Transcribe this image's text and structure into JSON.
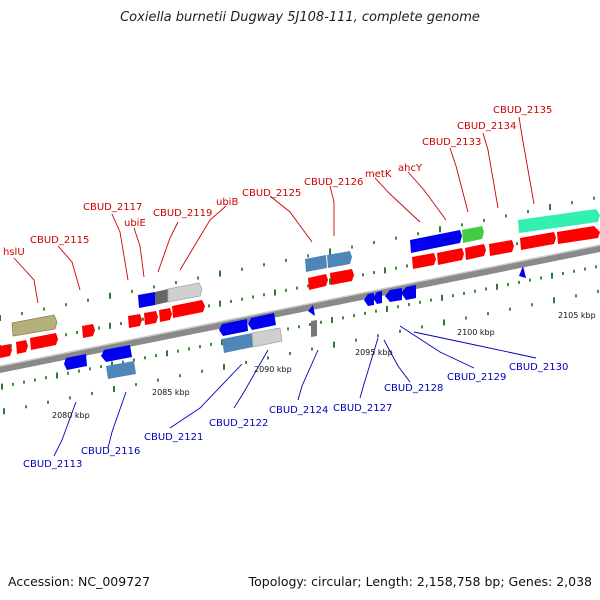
{
  "title": "Coxiella burnetii Dugway 5J108-111, complete genome",
  "accession": "Accession: NC_009727",
  "summary": "Topology: circular; Length: 2,158,758 bp; Genes: 2,038",
  "colors": {
    "forward_label": "#cc0000",
    "reverse_label": "#0000bb",
    "backbone": "#888888",
    "red": "#ff0000",
    "blue": "#0000ee",
    "steel": "#4f86b8",
    "gray": "#cfcfcf",
    "olive": "#b5b07a",
    "green": "#44cc44",
    "teal": "#33f0b0"
  },
  "scale_labels": [
    "2080 kbp",
    "2085 kbp",
    "2090 kbp",
    "2095 kbp",
    "2100 kbp",
    "2105 kbp"
  ],
  "forward_labels": [
    "hslU",
    "CBUD_2115",
    "CBUD_2117",
    "ubiE",
    "CBUD_2119",
    "ubiB",
    "CBUD_2125",
    "CBUD_2126",
    "metK",
    "ahcY",
    "CBUD_2133",
    "CBUD_2134",
    "CBUD_2135"
  ],
  "reverse_labels": [
    "CBUD_2113",
    "CBUD_2116",
    "CBUD_2121",
    "CBUD_2122",
    "CBUD_2124",
    "CBUD_2127",
    "CBUD_2128",
    "CBUD_2129",
    "CBUD_2130"
  ]
}
